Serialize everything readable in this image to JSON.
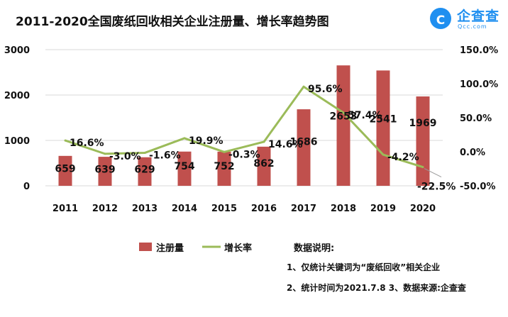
{
  "brand": {
    "logo_initial": "C",
    "name": "企查查",
    "sub": "Qcc.com"
  },
  "colors": {
    "bar": "#c0504d",
    "line": "#9bbb59"
  },
  "notes": {
    "heading": "数据说明:",
    "line1": "1、仅统计关键词为“废纸回收”相关企业",
    "line2": "2、统计时间为2021.7.8 3、数据来源:企查查"
  },
  "chart_data": {
    "type": "bar",
    "title": "2011-2020全国废纸回收相关企业注册量、增长率趋势图",
    "categories": [
      "2011",
      "2012",
      "2013",
      "2014",
      "2015",
      "2016",
      "2017",
      "2018",
      "2019",
      "2020"
    ],
    "series": [
      {
        "name": "注册量",
        "type": "bar",
        "axis": "left",
        "values": [
          659,
          639,
          629,
          754,
          752,
          862,
          1686,
          2653,
          2541,
          1969
        ],
        "labels": [
          "659",
          "639",
          "629",
          "754",
          "752",
          "862",
          "1686",
          "2653",
          "2541",
          "1969"
        ]
      },
      {
        "name": "增长率",
        "type": "line",
        "axis": "right",
        "values": [
          16.6,
          -3.0,
          -1.6,
          19.9,
          -0.3,
          14.6,
          95.6,
          57.4,
          -4.2,
          -22.5
        ],
        "labels": [
          "16.6%",
          "-3.0%",
          "-1.6%",
          "19.9%",
          "-0.3%",
          "14.6%",
          "95.6%",
          "57.4%",
          "-4.2%",
          "-22.5%"
        ]
      }
    ],
    "y_left": {
      "min": 0,
      "max": 3000,
      "ticks": [
        0,
        1000,
        2000,
        3000
      ],
      "tick_labels": [
        "0",
        "1000",
        "2000",
        "3000"
      ]
    },
    "y_right": {
      "min": -50,
      "max": 150,
      "ticks": [
        -50,
        0,
        50,
        100,
        150
      ],
      "tick_labels": [
        "-50.0%",
        "0.0%",
        "50.0%",
        "100.0%",
        "150.0%"
      ]
    },
    "grid": false,
    "legend": "bottom-left"
  }
}
